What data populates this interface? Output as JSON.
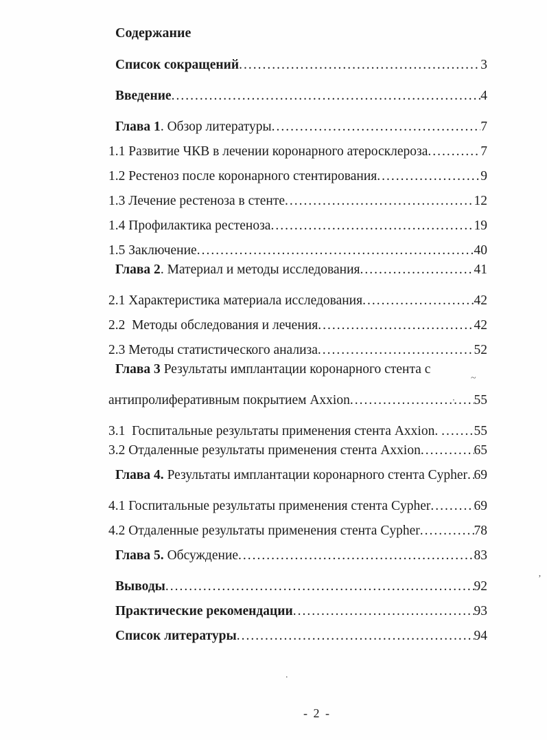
{
  "document": {
    "title": "Содержание",
    "footer_page_number": "- 2 -",
    "leader_char": ".",
    "toc": [
      {
        "bold": "Список сокращений",
        "text": "",
        "page": "3",
        "gap": "lg"
      },
      {
        "bold": "Введение",
        "text": "",
        "page": "4",
        "gap": "lg"
      },
      {
        "bold": "Глава 1",
        "text": ". Обзор литературы",
        "page": "7",
        "gap": "lg"
      },
      {
        "bold": "",
        "text": "1.1 Развитие ЧКВ в лечении коронарного атеросклероза",
        "page": "7",
        "gap": "md"
      },
      {
        "bold": "",
        "text": "1.2 Рестеноз после коронарного стентирования",
        "page": "9",
        "gap": "md"
      },
      {
        "bold": "",
        "text": "1.3 Лечение рестеноза в стенте",
        "page": "12",
        "gap": "md"
      },
      {
        "bold": "",
        "text": "1.4 Профилактика рестеноза",
        "page": "19",
        "gap": "md"
      },
      {
        "bold": "",
        "text": "1.5 Заключение",
        "page": "40",
        "gap": "md"
      },
      {
        "bold": "Глава 2",
        "text": ". Материал и методы исследования",
        "page": "41",
        "gap": "sm"
      },
      {
        "bold": "",
        "text": "2.1 Характеристика материала исследования",
        "page": "42",
        "gap": "lg"
      },
      {
        "bold": "",
        "text": "2.2  Методы обследования и лечения",
        "page": "42",
        "gap": "md"
      },
      {
        "bold": "",
        "text": "2.3 Методы статистического анализа",
        "page": "52",
        "gap": "md"
      },
      {
        "bold": "Глава 3",
        "text": " Результаты имплантации коронарного стента с",
        "page": "",
        "gap": "sm"
      },
      {
        "bold": "",
        "text": "антипролиферативным покрытием Axxion",
        "page": "55",
        "gap": "lg"
      },
      {
        "bold": "",
        "text": "3.1  Госпитальные результаты применения стента Axxion. ",
        "page": "55",
        "gap": "lg"
      },
      {
        "bold": "",
        "text": "3.2 Отдаленные результаты применения стента Axxion",
        "page": "65",
        "gap": "sm"
      },
      {
        "bold": "Глава 4.",
        "text": " Результаты имплантации коронарного стента Cypher",
        "page": "69",
        "gap": "md"
      },
      {
        "bold": "",
        "text": "4.1 Госпитальные результаты применения стента Cypher",
        "page": "69",
        "gap": "lg"
      },
      {
        "bold": "",
        "text": "4.2 Отдаленные результаты применения стента Cypher",
        "page": "78",
        "gap": "md"
      },
      {
        "bold": "Глава 5.",
        "text": " Обсуждение",
        "page": "83",
        "gap": "md"
      },
      {
        "bold": "Выводы",
        "text": "",
        "page": "92",
        "gap": "lg"
      },
      {
        "bold": "Практические рекомендации",
        "text": "",
        "page": "93",
        "gap": "md"
      },
      {
        "bold": "Список литературы",
        "text": "",
        "page": "94",
        "gap": "md"
      }
    ],
    "scan_artifacts": {
      "tilde": "~",
      "tick": "ʼ",
      "speck": ".",
      "quote": "’"
    }
  }
}
